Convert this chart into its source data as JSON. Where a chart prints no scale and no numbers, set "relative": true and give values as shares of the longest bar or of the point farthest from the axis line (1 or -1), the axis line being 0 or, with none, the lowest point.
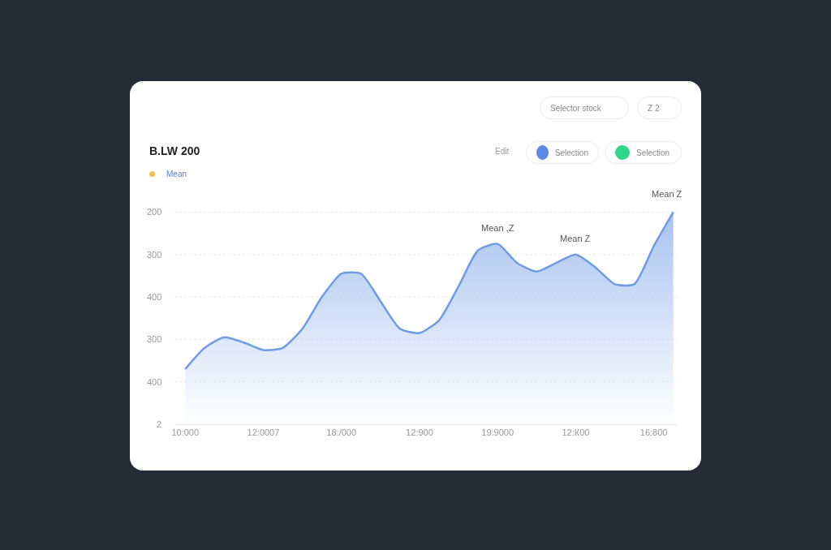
{
  "chart_data": {
    "type": "area",
    "title": "B.LW 200",
    "relative": true,
    "categories": [
      "10:000",
      null,
      null,
      null,
      "12:0007",
      null,
      null,
      null,
      "18:/000",
      null,
      null,
      null,
      "12:900",
      null,
      null,
      null,
      "19:9000",
      null,
      null,
      null,
      "12:К00",
      null,
      null,
      null,
      "16:800",
      null
    ],
    "series": [
      {
        "color": "#6f9be6",
        "values": [
          0.26,
          0.36,
          0.41,
          0.385,
          0.35,
          0.36,
          0.45,
          0.6,
          0.71,
          0.71,
          0.58,
          0.45,
          0.43,
          0.49,
          0.65,
          0.82,
          0.85,
          0.76,
          0.72,
          0.76,
          0.8,
          0.74,
          0.66,
          0.66,
          0.84,
          1.0
        ]
      }
    ],
    "grid": "y",
    "line_style": "solid",
    "marker": "none",
    "annotations": [
      {
        "text": "Mean ,Z",
        "x": "19:9000",
        "y": 0.85
      },
      {
        "text": "Mean Z",
        "x": "12:К00",
        "y": 0.8
      },
      "200",
      "300",
      "400",
      "300",
      "400",
      "2",
      "Mean",
      "Selector  stock",
      "Z  2",
      "Edit",
      "Selection",
      "Selection",
      "Mean Z"
    ]
  }
}
